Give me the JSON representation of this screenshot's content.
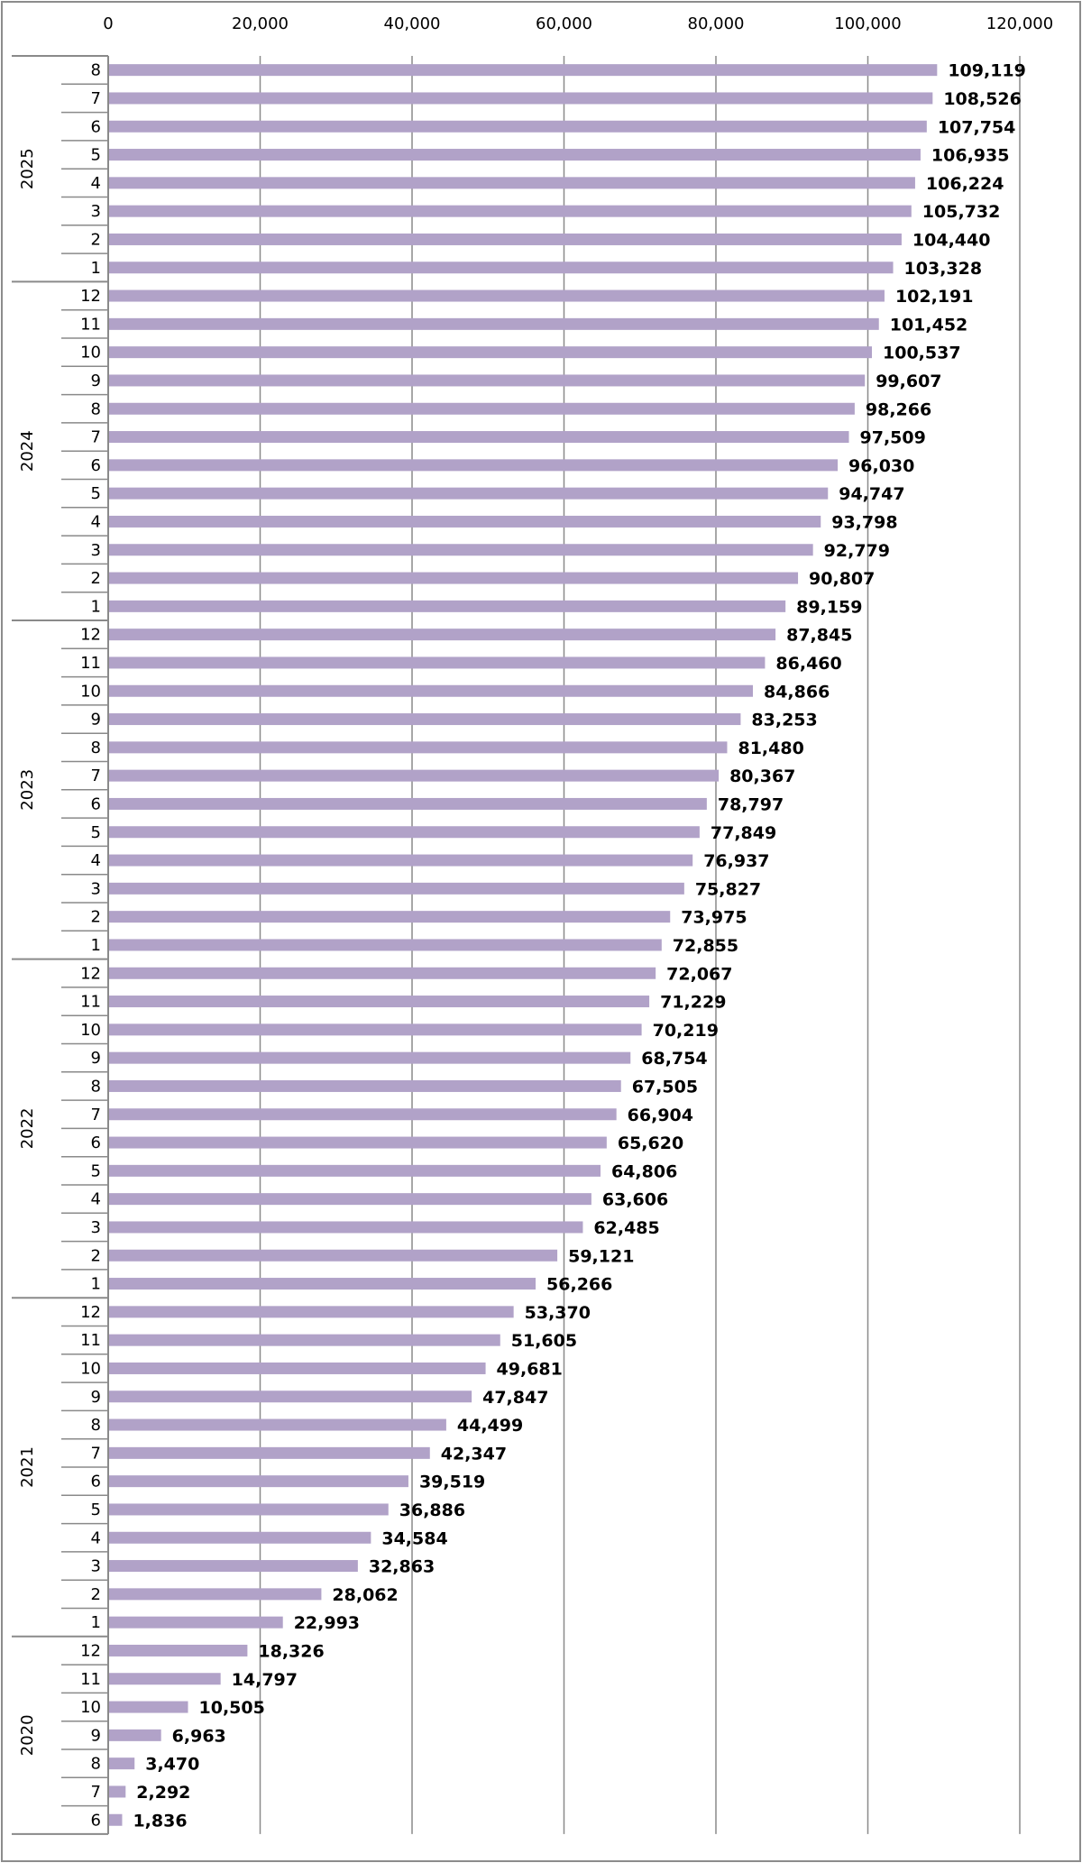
{
  "chart_data": {
    "type": "bar",
    "orientation": "horizontal",
    "title": "",
    "xlabel": "",
    "ylabel": "",
    "xlim": [
      0,
      120000
    ],
    "x_ticks": [
      "0",
      "20,000",
      "40,000",
      "60,000",
      "80,000",
      "100,000",
      "120,000"
    ],
    "x_tick_values": [
      0,
      20000,
      40000,
      60000,
      80000,
      100000,
      120000
    ],
    "grid": "vertical",
    "legend": "none",
    "bar_color": "#b1a2c8",
    "label_color": "#000000",
    "groups": [
      {
        "year": "2025",
        "months": [
          "8",
          "7",
          "6",
          "5",
          "4",
          "3",
          "2",
          "1"
        ],
        "values": [
          109119,
          108526,
          107754,
          106935,
          106224,
          105732,
          104440,
          103328
        ],
        "labels": [
          "109,119",
          "108,526",
          "107,754",
          "106,935",
          "106,224",
          "105,732",
          "104,440",
          "103,328"
        ]
      },
      {
        "year": "2024",
        "months": [
          "12",
          "11",
          "10",
          "9",
          "8",
          "7",
          "6",
          "5",
          "4",
          "3",
          "2",
          "1"
        ],
        "values": [
          102191,
          101452,
          100537,
          99607,
          98266,
          97509,
          96030,
          94747,
          93798,
          92779,
          90807,
          89159
        ],
        "labels": [
          "102,191",
          "101,452",
          "100,537",
          "99,607",
          "98,266",
          "97,509",
          "96,030",
          "94,747",
          "93,798",
          "92,779",
          "90,807",
          "89,159"
        ]
      },
      {
        "year": "2023",
        "months": [
          "12",
          "11",
          "10",
          "9",
          "8",
          "7",
          "6",
          "5",
          "4",
          "3",
          "2",
          "1"
        ],
        "values": [
          87845,
          86460,
          84866,
          83253,
          81480,
          80367,
          78797,
          77849,
          76937,
          75827,
          73975,
          72855
        ],
        "labels": [
          "87,845",
          "86,460",
          "84,866",
          "83,253",
          "81,480",
          "80,367",
          "78,797",
          "77,849",
          "76,937",
          "75,827",
          "73,975",
          "72,855"
        ]
      },
      {
        "year": "2022",
        "months": [
          "12",
          "11",
          "10",
          "9",
          "8",
          "7",
          "6",
          "5",
          "4",
          "3",
          "2",
          "1"
        ],
        "values": [
          72067,
          71229,
          70219,
          68754,
          67505,
          66904,
          65620,
          64806,
          63606,
          62485,
          59121,
          56266
        ],
        "labels": [
          "72,067",
          "71,229",
          "70,219",
          "68,754",
          "67,505",
          "66,904",
          "65,620",
          "64,806",
          "63,606",
          "62,485",
          "59,121",
          "56,266"
        ]
      },
      {
        "year": "2021",
        "months": [
          "12",
          "11",
          "10",
          "9",
          "8",
          "7",
          "6",
          "5",
          "4",
          "3",
          "2",
          "1"
        ],
        "values": [
          53370,
          51605,
          49681,
          47847,
          44499,
          42347,
          39519,
          36886,
          34584,
          32863,
          28062,
          22993
        ],
        "labels": [
          "53,370",
          "51,605",
          "49,681",
          "47,847",
          "44,499",
          "42,347",
          "39,519",
          "36,886",
          "34,584",
          "32,863",
          "28,062",
          "22,993"
        ]
      },
      {
        "year": "2020",
        "months": [
          "12",
          "11",
          "10",
          "9",
          "8",
          "7",
          "6"
        ],
        "values": [
          18326,
          14797,
          10505,
          6963,
          3470,
          2292,
          1836
        ],
        "labels": [
          "18,326",
          "14,797",
          "10,505",
          "6,963",
          "3,470",
          "2,292",
          "1,836"
        ]
      }
    ]
  }
}
